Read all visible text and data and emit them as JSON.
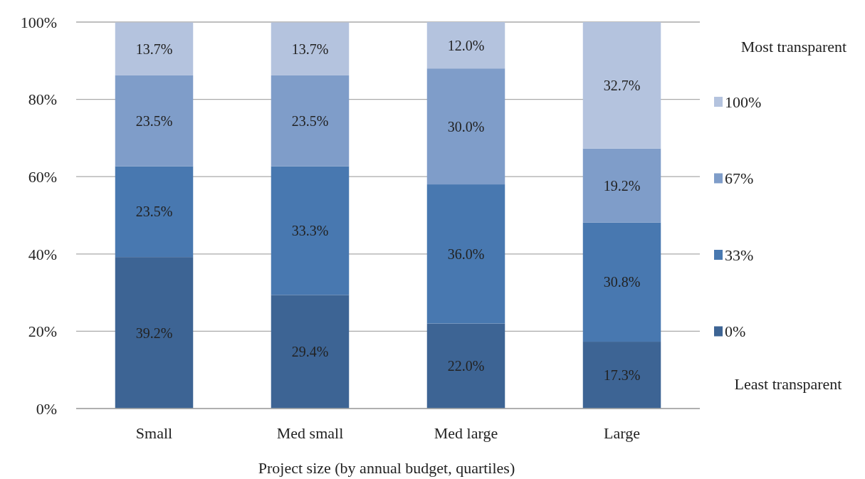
{
  "chart_data": {
    "type": "bar",
    "stacked": true,
    "xlabel": "Project size (by annual budget, quartiles)",
    "legend_title": "Most transparent",
    "annotations": [
      "Least transparent"
    ],
    "categories": [
      "Small",
      "Med small",
      "Med large",
      "Large"
    ],
    "series": [
      {
        "name": "0%",
        "color": "#3d6494",
        "values": [
          39.2,
          29.4,
          22.0,
          17.3
        ],
        "value_labels": [
          "39.2%",
          "29.4%",
          "22.0%",
          "17.3%"
        ]
      },
      {
        "name": "33%",
        "color": "#4878b0",
        "values": [
          23.5,
          33.3,
          36.0,
          30.8
        ],
        "value_labels": [
          "23.5%",
          "33.3%",
          "36.0%",
          "30.8%"
        ]
      },
      {
        "name": "67%",
        "color": "#7f9dc9",
        "values": [
          23.5,
          23.5,
          30.0,
          19.2
        ],
        "value_labels": [
          "23.5%",
          "23.5%",
          "30.0%",
          "19.2%"
        ]
      },
      {
        "name": "100%",
        "color": "#b4c3de",
        "values": [
          13.7,
          13.7,
          12.0,
          32.7
        ],
        "value_labels": [
          "13.7%",
          "13.7%",
          "12.0%",
          "32.7%"
        ]
      }
    ],
    "ylim": [
      0,
      100
    ],
    "yticks": [
      {
        "value": 0,
        "label": "0%"
      },
      {
        "value": 20,
        "label": "20%"
      },
      {
        "value": 40,
        "label": "40%"
      },
      {
        "value": 60,
        "label": "60%"
      },
      {
        "value": 80,
        "label": "80%"
      },
      {
        "value": 100,
        "label": "100%"
      }
    ],
    "grid": "y",
    "legend": "right"
  }
}
